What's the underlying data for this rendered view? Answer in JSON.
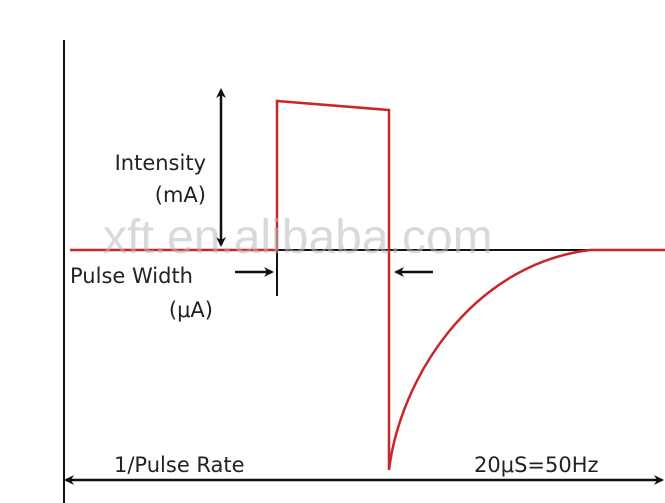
{
  "intensity": {
    "label": "Intensity",
    "unit": "(mA)"
  },
  "pulse_width": {
    "label": "Pulse Width",
    "unit": "(μA)"
  },
  "pulse_rate": {
    "label": "1/Pulse Rate",
    "note": "20μS=50Hz"
  },
  "watermark": "xft.en.alibaba.com"
}
